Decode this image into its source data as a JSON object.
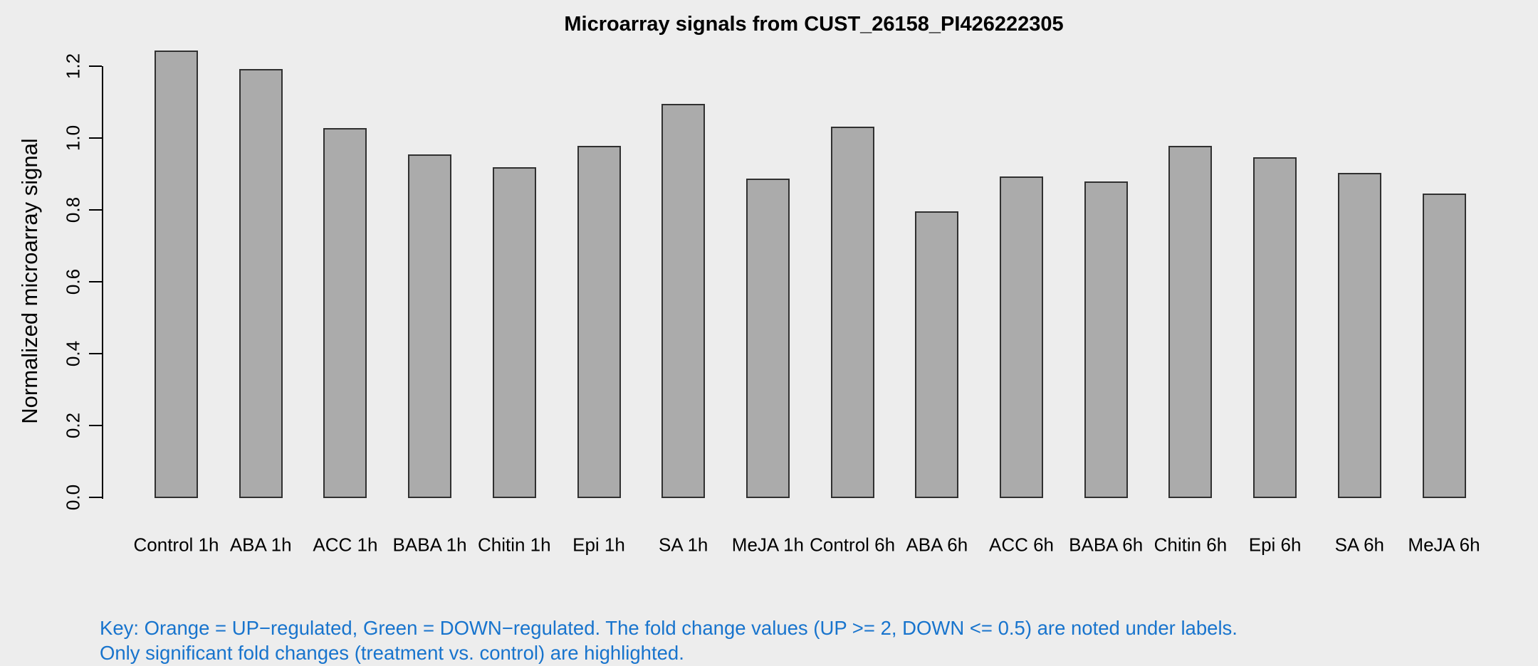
{
  "title": "Microarray signals from CUST_26158_PI426222305",
  "chart_data": {
    "type": "bar",
    "title": "Microarray signals from CUST_26158_PI426222305",
    "xlabel": "",
    "ylabel": "Normalized microarray signal",
    "categories": [
      "Control 1h",
      "ABA 1h",
      "ACC 1h",
      "BABA 1h",
      "Chitin 1h",
      "Epi 1h",
      "SA 1h",
      "MeJA 1h",
      "Control 6h",
      "ABA 6h",
      "ACC 6h",
      "BABA 6h",
      "Chitin 6h",
      "Epi 6h",
      "SA 6h",
      "MeJA 6h"
    ],
    "values": [
      1.243,
      1.192,
      1.028,
      0.954,
      0.918,
      0.978,
      1.094,
      0.886,
      1.032,
      0.796,
      0.893,
      0.878,
      0.977,
      0.946,
      0.903,
      0.846
    ],
    "ylim": [
      0,
      1.25
    ],
    "yticks": [
      0.0,
      0.2,
      0.4,
      0.6,
      0.8,
      1.0,
      1.2
    ],
    "ytick_labels": [
      "0.0",
      "0.2",
      "0.4",
      "0.6",
      "0.8",
      "1.0",
      "1.2"
    ],
    "grid": false,
    "legend_position": "none",
    "bar_fill_color": "#ABABAB",
    "bar_border_color": "#303030",
    "background_color": "#EDEDED",
    "axis_color": "#000000"
  },
  "footnote": {
    "line1": "Key: Orange = UP−regulated, Green = DOWN−regulated. The fold change values (UP >= 2, DOWN <= 0.5) are noted under labels.",
    "line2": "Only significant fold changes (treatment vs. control) are highlighted.",
    "color": "#1874CD"
  }
}
